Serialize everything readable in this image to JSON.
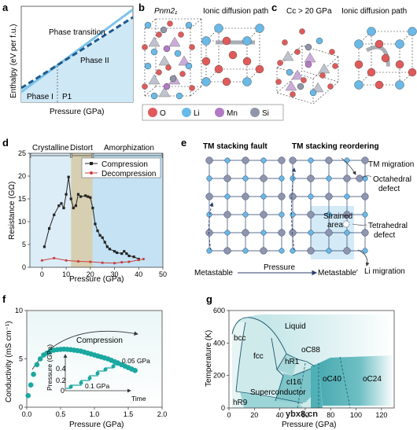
{
  "panels": {
    "a": {
      "label": "a",
      "ylabel": "Enthalpy (eV per f.u.)",
      "xlabel": "Pressure (GPa)",
      "phase_transition": "Phase transition",
      "phase1": "Phase I",
      "phase2": "Phase II",
      "p1": "P1"
    },
    "b": {
      "label": "b",
      "structure": "Pnm2₁",
      "diffusion": "Ionic diffusion path"
    },
    "c": {
      "label": "c",
      "structure": "Cc > 20 GPa",
      "diffusion": "Ionic diffusion path"
    },
    "legend": [
      {
        "symbol": "O",
        "color": "#e15a5a"
      },
      {
        "symbol": "Li",
        "color": "#6ab9e6"
      },
      {
        "symbol": "Mn",
        "color": "#b27ac4"
      },
      {
        "symbol": "Si",
        "color": "#9096a8"
      }
    ],
    "d": {
      "label": "d",
      "regions": [
        "Crystalline",
        "Distort",
        "Amorphization"
      ],
      "ylabel": "Resistance (GΩ)",
      "xlabel": "Pressure (GPa)",
      "legend_compression": "Compression",
      "legend_decompression": "Decompression"
    },
    "e": {
      "label": "e",
      "title_left": "TM stacking fault",
      "title_right": "TM stacking reordering",
      "tm_migration": "TM migration",
      "octahedral": "Octahedral",
      "octahedral2": "defect",
      "strained": "Strained",
      "strained2": "area",
      "tetrahedral": "Tetrahedral",
      "tetrahedral2": "defect",
      "li_migration": "Li migration",
      "metastable": "Metastable",
      "pressure": "Pressure",
      "metastable2": "Metastable′"
    },
    "f": {
      "label": "f",
      "ylabel": "Conductivity (mS cm⁻¹)",
      "xlabel": "Pressure (GPa)",
      "compression": "Compression",
      "inset_ylabel": "Pressure (GPa)",
      "inset_xlabel": "Time",
      "step1": "0.1 GPa",
      "step2": "0.05 GPa"
    },
    "g": {
      "label": "g",
      "ylabel": "Temperature (K)",
      "xlabel": "Pressure (GPa)",
      "phases": [
        "Liquid",
        "bcc",
        "fcc",
        "oC88",
        "hR1",
        "cI16",
        "oC40",
        "oC24",
        "Superconductor",
        "hR9"
      ],
      "watermark": "ybx8.cn"
    }
  },
  "chart_data": [
    {
      "type": "line",
      "title": "",
      "xlabel": "Pressure (GPa)",
      "ylabel": "Resistance (GΩ)",
      "xlim": [
        -5,
        50
      ],
      "ylim": [
        0,
        25
      ],
      "xticks": [
        0,
        10,
        20,
        30,
        40,
        50
      ],
      "yticks": [
        0,
        5,
        10,
        15,
        20,
        25
      ],
      "legend_position": "top-right",
      "series": [
        {
          "name": "Compression",
          "color": "#222222",
          "x": [
            1,
            3,
            5,
            7,
            8,
            9,
            10,
            11,
            12,
            13,
            14,
            15,
            16,
            18,
            19,
            20,
            21,
            22,
            23,
            24,
            25,
            26,
            27,
            28,
            30,
            31,
            33,
            34,
            35,
            36,
            38,
            40
          ],
          "y": [
            4.5,
            8.5,
            11.5,
            13.5,
            14,
            13,
            16,
            19.8,
            15,
            13,
            13.5,
            16,
            15.5,
            15.7,
            15.5,
            15.3,
            13,
            9.5,
            8,
            7,
            6.5,
            5.5,
            4.5,
            4,
            3.5,
            3.2,
            3,
            3.5,
            3,
            2.5,
            2.3,
            1.8
          ]
        },
        {
          "name": "Decompression",
          "color": "#c9403f",
          "x": [
            0,
            5,
            10,
            15,
            20,
            25,
            30,
            33,
            36,
            40,
            42
          ],
          "y": [
            1.5,
            2,
            1.5,
            1.3,
            1.2,
            1,
            0.9,
            1.1,
            1.2,
            1.6,
            1.8
          ]
        }
      ]
    },
    {
      "type": "scatter",
      "title": "",
      "xlabel": "Pressure (GPa)",
      "ylabel": "Conductivity (mS cm⁻¹)",
      "xlim": [
        0,
        2.0
      ],
      "ylim": [
        0,
        10
      ],
      "xticks": [
        0,
        0.5,
        1.0,
        1.5,
        2.0
      ],
      "yticks": [
        0,
        5,
        10
      ],
      "series": [
        {
          "name": "Compression",
          "color": "#1aa8a0",
          "x": [
            0.02,
            0.06,
            0.1,
            0.15,
            0.2,
            0.25,
            0.3,
            0.35,
            0.4,
            0.45,
            0.5,
            0.55,
            0.6,
            0.65,
            0.7,
            0.75,
            0.8,
            0.85,
            0.9,
            0.95,
            1.0,
            1.05,
            1.1,
            1.15,
            1.2,
            1.25,
            1.3,
            1.35,
            1.4,
            1.45,
            1.5,
            1.55,
            1.6
          ],
          "y": [
            1.2,
            2.3,
            3.4,
            4.4,
            5.0,
            5.4,
            5.6,
            5.8,
            5.9,
            5.95,
            5.98,
            6.0,
            5.98,
            5.95,
            5.9,
            5.85,
            5.8,
            5.7,
            5.6,
            5.5,
            5.4,
            5.3,
            5.2,
            5.1,
            5.0,
            4.85,
            4.7,
            4.55,
            4.4,
            4.25,
            4.1,
            3.95,
            3.8
          ]
        }
      ]
    },
    {
      "type": "area",
      "title": "",
      "xlabel": "Pressure (GPa)",
      "ylabel": "Temperature (K)",
      "xlim": [
        0,
        130
      ],
      "ylim": [
        0,
        600
      ],
      "xticks": [
        0,
        20,
        40,
        60,
        80,
        100,
        120
      ],
      "yticks": [
        0,
        200,
        400,
        600
      ]
    }
  ]
}
